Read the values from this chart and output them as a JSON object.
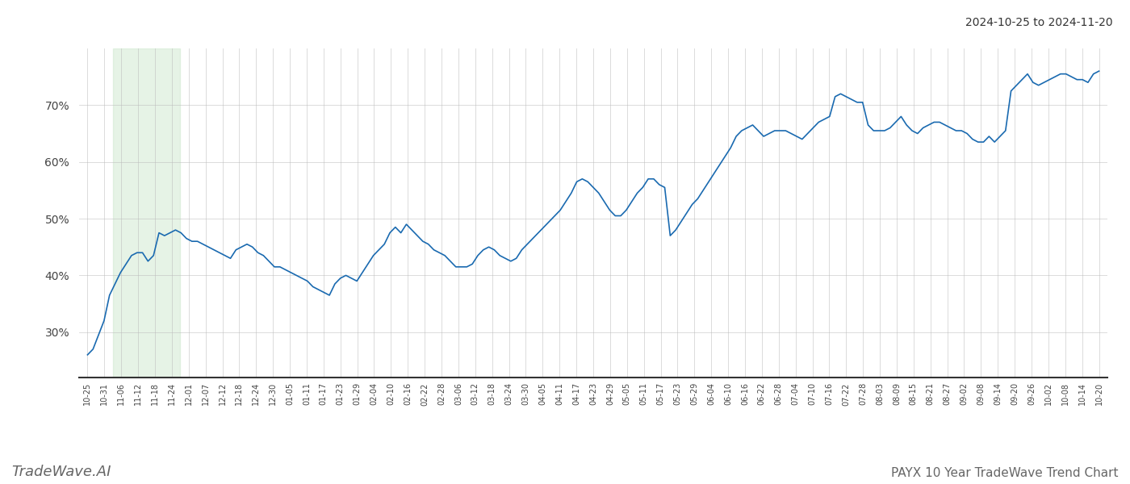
{
  "title_top_right": "2024-10-25 to 2024-11-20",
  "title_bottom_left": "TradeWave.AI",
  "title_bottom_right": "PAYX 10 Year TradeWave Trend Chart",
  "background_color": "#ffffff",
  "line_color": "#1a6ab0",
  "line_width": 1.2,
  "highlight_color": "#c8e6c9",
  "highlight_alpha": 0.45,
  "ylim": [
    22,
    80
  ],
  "yticks": [
    30,
    40,
    50,
    60,
    70
  ],
  "grid_color": "#bbbbbb",
  "grid_alpha": 0.6,
  "x_labels": [
    "10-25",
    "10-31",
    "11-06",
    "11-12",
    "11-18",
    "11-24",
    "12-01",
    "12-07",
    "12-12",
    "12-18",
    "12-24",
    "12-30",
    "01-05",
    "01-11",
    "01-17",
    "01-23",
    "01-29",
    "02-04",
    "02-10",
    "02-16",
    "02-22",
    "02-28",
    "03-06",
    "03-12",
    "03-18",
    "03-24",
    "03-30",
    "04-05",
    "04-11",
    "04-17",
    "04-23",
    "04-29",
    "05-05",
    "05-11",
    "05-17",
    "05-23",
    "05-29",
    "06-04",
    "06-10",
    "06-16",
    "06-22",
    "06-28",
    "07-04",
    "07-10",
    "07-16",
    "07-22",
    "07-28",
    "08-03",
    "08-09",
    "08-15",
    "08-21",
    "08-27",
    "09-02",
    "09-08",
    "09-14",
    "09-20",
    "09-26",
    "10-02",
    "10-08",
    "10-14",
    "10-20"
  ],
  "highlight_x_start_label": "11-06",
  "highlight_x_end_label": "11-24",
  "y_values": [
    26.0,
    27.0,
    29.5,
    32.0,
    36.5,
    38.5,
    40.5,
    42.0,
    43.5,
    44.0,
    44.0,
    42.5,
    43.5,
    47.5,
    47.0,
    47.5,
    48.0,
    47.5,
    46.5,
    46.0,
    46.0,
    45.5,
    45.0,
    44.5,
    44.0,
    43.5,
    43.0,
    44.5,
    45.0,
    45.5,
    45.0,
    44.0,
    43.5,
    42.5,
    41.5,
    41.5,
    41.0,
    40.5,
    40.0,
    39.5,
    39.0,
    38.0,
    37.5,
    37.0,
    36.5,
    38.5,
    39.5,
    40.0,
    39.5,
    39.0,
    40.5,
    42.0,
    43.5,
    44.5,
    45.5,
    47.5,
    48.5,
    47.5,
    49.0,
    48.0,
    47.0,
    46.0,
    45.5,
    44.5,
    44.0,
    43.5,
    42.5,
    41.5,
    41.5,
    41.5,
    42.0,
    43.5,
    44.5,
    45.0,
    44.5,
    43.5,
    43.0,
    42.5,
    43.0,
    44.5,
    45.5,
    46.5,
    47.5,
    48.5,
    49.5,
    50.5,
    51.5,
    53.0,
    54.5,
    56.5,
    57.0,
    56.5,
    55.5,
    54.5,
    53.0,
    51.5,
    50.5,
    50.5,
    51.5,
    53.0,
    54.5,
    55.5,
    57.0,
    57.0,
    56.0,
    55.5,
    47.0,
    48.0,
    49.5,
    51.0,
    52.5,
    53.5,
    55.0,
    56.5,
    58.0,
    59.5,
    61.0,
    62.5,
    64.5,
    65.5,
    66.0,
    66.5,
    65.5,
    64.5,
    65.0,
    65.5,
    65.5,
    65.5,
    65.0,
    64.5,
    64.0,
    65.0,
    66.0,
    67.0,
    67.5,
    68.0,
    71.5,
    72.0,
    71.5,
    71.0,
    70.5,
    70.5,
    66.5,
    65.5,
    65.5,
    65.5,
    66.0,
    67.0,
    68.0,
    66.5,
    65.5,
    65.0,
    66.0,
    66.5,
    67.0,
    67.0,
    66.5,
    66.0,
    65.5,
    65.5,
    65.0,
    64.0,
    63.5,
    63.5,
    64.5,
    63.5,
    64.5,
    65.5,
    72.5,
    73.5,
    74.5,
    75.5,
    74.0,
    73.5,
    74.0,
    74.5,
    75.0,
    75.5,
    75.5,
    75.0,
    74.5,
    74.5,
    74.0,
    75.5,
    76.0
  ]
}
